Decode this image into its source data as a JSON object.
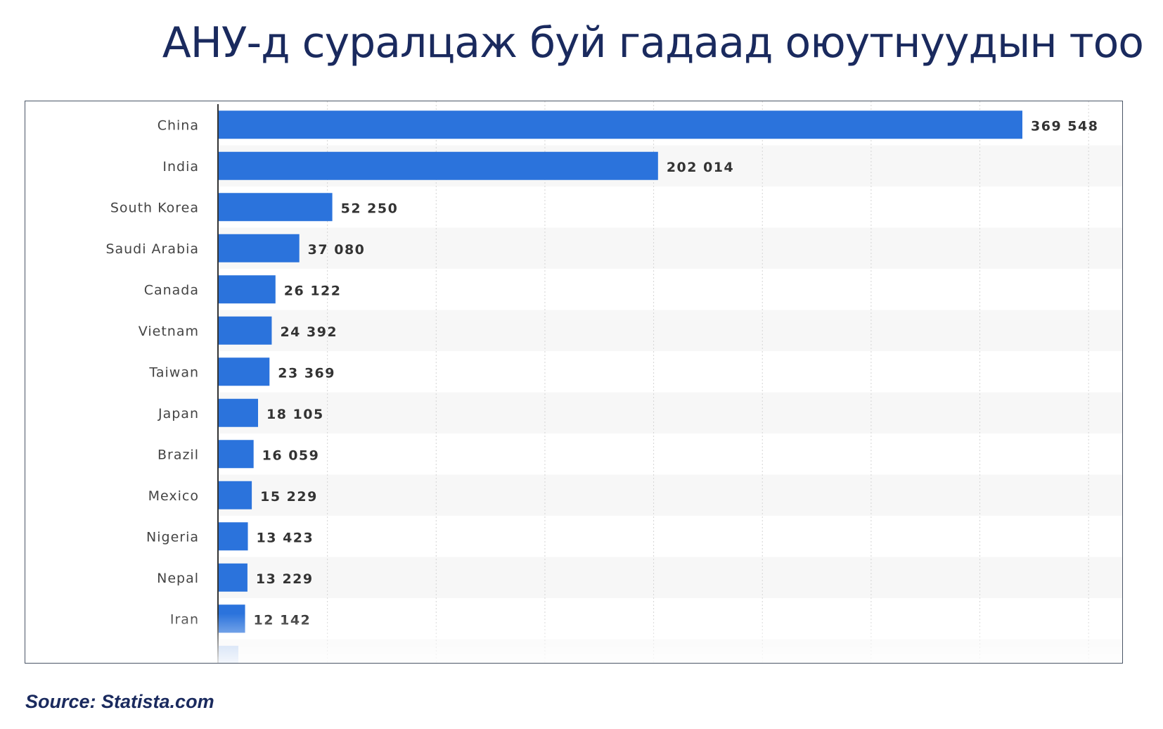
{
  "title": "АНУ-д суралцаж буй гадаад оюутнуудын тоо",
  "source": "Source: Statista.com",
  "colors": {
    "bar": "#2b73dc",
    "title": "#1a2a5e",
    "stripe": "#f7f7f7",
    "grid": "#d4d4d4"
  },
  "chart_data": {
    "type": "bar",
    "orientation": "horizontal",
    "categories": [
      "China",
      "India",
      "South Korea",
      "Saudi Arabia",
      "Canada",
      "Vietnam",
      "Taiwan",
      "Japan",
      "Brazil",
      "Mexico",
      "Nigeria",
      "Nepal",
      "Iran"
    ],
    "values": [
      369548,
      202014,
      52250,
      37080,
      26122,
      24392,
      23369,
      18105,
      16059,
      15229,
      13423,
      13229,
      12142
    ],
    "value_labels": [
      "369 548",
      "202 014",
      "52 250",
      "37 080",
      "26 122",
      "24 392",
      "23 369",
      "18 105",
      "16 059",
      "15 229",
      "13 423",
      "13 229",
      "12 142"
    ],
    "xlim": [
      0,
      450000
    ],
    "grid": true,
    "legend": "none",
    "title": "",
    "xlabel": "",
    "ylabel": ""
  }
}
